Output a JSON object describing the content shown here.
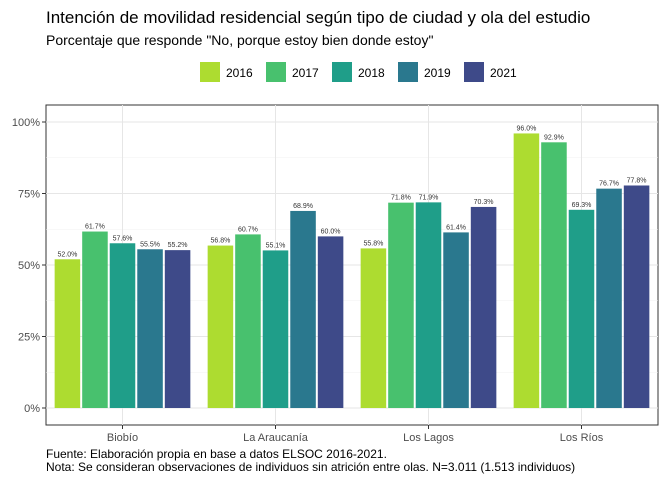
{
  "chart_data": {
    "type": "bar",
    "title": "Intención de movilidad residencial según tipo de ciudad y ola del estudio",
    "subtitle": "Porcentaje que responde \"No, porque estoy bien donde estoy\"",
    "categories": [
      "Biobío",
      "La Araucanía",
      "Los Lagos",
      "Los Ríos"
    ],
    "series": [
      {
        "name": "2016",
        "color": "#addc30",
        "values": [
          52.0,
          56.8,
          55.8,
          96.0
        ],
        "labels": [
          "52.0%",
          "56.8%",
          "55.8%",
          "96.0%"
        ]
      },
      {
        "name": "2017",
        "color": "#48c16e",
        "values": [
          61.7,
          60.7,
          71.8,
          92.9
        ],
        "labels": [
          "61.7%",
          "60.7%",
          "71.8%",
          "92.9%"
        ]
      },
      {
        "name": "2018",
        "color": "#1f9e89",
        "values": [
          57.6,
          55.1,
          71.9,
          69.3
        ],
        "labels": [
          "57.6%",
          "55.1%",
          "71.9%",
          "69.3%"
        ]
      },
      {
        "name": "2019",
        "color": "#2a788e",
        "values": [
          55.5,
          68.9,
          61.4,
          76.7
        ],
        "labels": [
          "55.5%",
          "68.9%",
          "61.4%",
          "76.7%"
        ]
      },
      {
        "name": "2021",
        "color": "#3e4a89",
        "values": [
          55.2,
          60.0,
          70.3,
          77.8
        ],
        "labels": [
          "55.2%",
          "60.0%",
          "70.3%",
          "77.8%"
        ]
      }
    ],
    "ylim": [
      0,
      100
    ],
    "yticks": [
      0,
      25,
      50,
      75,
      100
    ],
    "ytick_labels": [
      "0%",
      "25%",
      "50%",
      "75%",
      "100%"
    ],
    "grid": true,
    "legend_position": "top",
    "caption_lines": [
      "Fuente: Elaboración propia en base a datos ELSOC 2016-2021.",
      "Nota: Se consideran observaciones de individuos sin atrición entre olas. N=3.011 (1.513 individuos)"
    ]
  }
}
